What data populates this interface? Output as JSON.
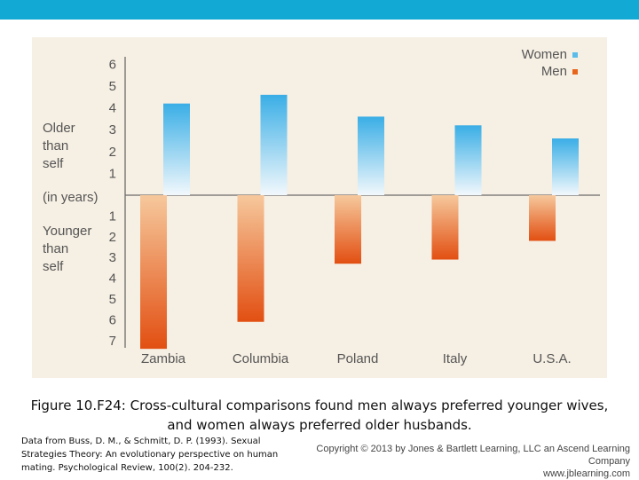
{
  "caption": "Figure 10.F24: Cross-cultural comparisons found men always preferred younger wives, and women always preferred older husbands.",
  "citation": "Data from Buss, D. M., & Schmitt, D. P. (1993). Sexual Strategies Theory: An evolutionary perspective on human mating. Psychological Review, 100(2). 204-232.",
  "copyright": {
    "line1": "Copyright © 2013 by Jones & Bartlett Learning, LLC an Ascend Learning Company",
    "line2": "www.jblearning.com"
  },
  "colors": {
    "top_bar": "#13a9d5",
    "panel_background": "#f6efe3",
    "women": "#5bbce9",
    "men": "#e8661c",
    "axis": "#6b6b6b",
    "text": "#555555"
  },
  "chart_data": {
    "type": "bar",
    "title": "",
    "categories": [
      "Zambia",
      "Columbia",
      "Poland",
      "Italy",
      "U.S.A."
    ],
    "series": [
      {
        "name": "Women",
        "values": [
          4.2,
          4.6,
          3.6,
          3.2,
          2.6
        ]
      },
      {
        "name": "Men",
        "values": [
          -7.4,
          -6.1,
          -3.3,
          -3.1,
          -2.2
        ]
      }
    ],
    "ylim": [
      -7,
      6
    ],
    "upper_ticks": [
      "1",
      "2",
      "3",
      "4",
      "5",
      "6"
    ],
    "lower_ticks": [
      "1",
      "2",
      "3",
      "4",
      "5",
      "6",
      "7"
    ],
    "y_label_upper": [
      "Older",
      "than",
      "self"
    ],
    "y_label_middle": "(in years)",
    "y_label_lower": [
      "Younger",
      "than",
      "self"
    ],
    "legend": [
      "Women",
      "Men"
    ],
    "legend_position": "top-right",
    "grid": false
  }
}
